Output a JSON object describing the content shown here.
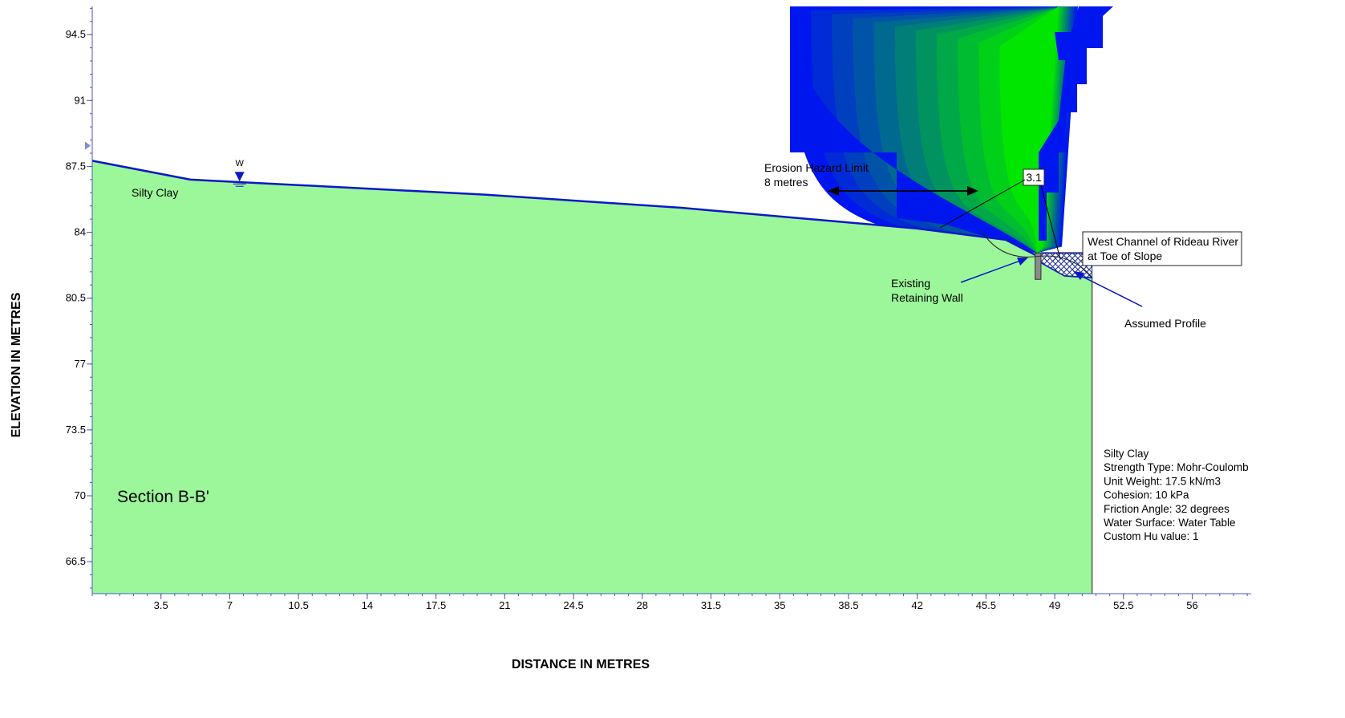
{
  "axes": {
    "xlabel": "DISTANCE IN METRES",
    "ylabel": "ELEVATION IN METRES",
    "x_range": [
      0,
      59
    ],
    "y_range": [
      64.8,
      96
    ],
    "x_ticks": [
      "3.5",
      "7",
      "10.5",
      "14",
      "17.5",
      "21",
      "24.5",
      "28",
      "31.5",
      "35",
      "38.5",
      "42",
      "45.5",
      "49",
      "52.5",
      "56"
    ],
    "x_tick_values": [
      3.5,
      7,
      10.5,
      14,
      17.5,
      21,
      24.5,
      28,
      31.5,
      35,
      38.5,
      42,
      45.5,
      49,
      52.5,
      56
    ],
    "y_ticks": [
      "94.5",
      "91",
      "87.5",
      "84",
      "80.5",
      "77",
      "73.5",
      "70",
      "66.5"
    ],
    "y_tick_values": [
      94.5,
      91,
      87.5,
      84,
      80.5,
      77,
      73.5,
      70,
      66.5
    ]
  },
  "profile": {
    "ground_surface": [
      [
        0,
        87.8
      ],
      [
        5,
        86.8
      ],
      [
        20,
        86.0
      ],
      [
        30,
        85.3
      ],
      [
        42,
        84.2
      ],
      [
        46.5,
        83.6
      ],
      [
        48,
        82.8
      ],
      [
        48.3,
        82.4
      ],
      [
        49.5,
        81.7
      ],
      [
        50.9,
        81.6
      ]
    ],
    "right_boundary_x": 50.9,
    "bottom_elevation": 64.8,
    "material": "Silty Clay",
    "material_color": "#9cf79a"
  },
  "water": {
    "marker_label": "W",
    "marker_x": 7.5,
    "marker_y": 86.4,
    "river_level": 82.9
  },
  "labels": {
    "silty_clay": "Silty Clay",
    "section": "Section B-B'",
    "erosion_line1": "Erosion Hazard Limit",
    "erosion_line2": "8 metres",
    "fos": "3.1",
    "river_line1": "West Channel of Rideau River",
    "river_line2": "at Toe of Slope",
    "wall_line1": "Existing",
    "wall_line2": "Retaining Wall",
    "assumed_profile": "Assumed Profile"
  },
  "material_properties": [
    "Silty Clay",
    "Strength Type: Mohr-Coulomb",
    "Unit Weight: 17.5 kN/m3",
    "Cohesion: 10 kPa",
    "Friction Angle: 32 degrees",
    "Water Surface: Water Table",
    "Custom Hu value: 1"
  ],
  "colors": {
    "soil": "#9cf79a",
    "ground_line": "#0a18c8",
    "contour_low": "#0016ee",
    "contour_high": "#00e600"
  }
}
